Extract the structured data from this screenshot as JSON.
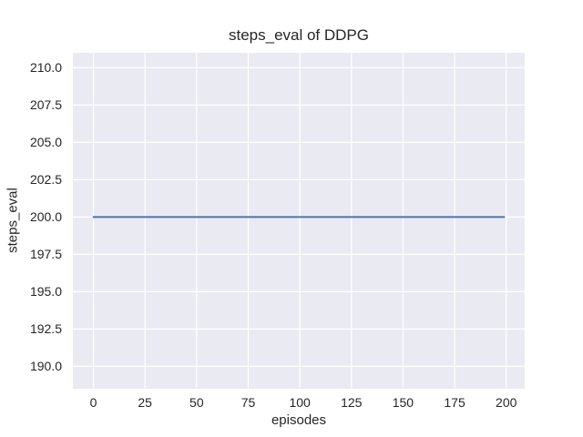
{
  "chart_data": {
    "type": "line",
    "title": "steps_eval of DDPG",
    "xlabel": "episodes",
    "ylabel": "steps_eval",
    "xlim": [
      -9.95,
      208.95
    ],
    "ylim": [
      188.5,
      211.0
    ],
    "x_tick_values": [
      0,
      25,
      50,
      75,
      100,
      125,
      150,
      175,
      200
    ],
    "x_tick_labels": [
      "0",
      "25",
      "50",
      "75",
      "100",
      "125",
      "150",
      "175",
      "200"
    ],
    "y_tick_values": [
      210.0,
      207.5,
      205.0,
      202.5,
      200.0,
      197.5,
      195.0,
      192.5,
      190.0
    ],
    "y_tick_labels": [
      "210.0",
      "207.5",
      "205.0",
      "202.5",
      "200.0",
      "197.5",
      "195.0",
      "192.5",
      "190.0"
    ],
    "grid": true,
    "legend_position": "none",
    "style": {
      "figure_facecolor": "#ffffff",
      "axes_facecolor": "#eaeaf2",
      "grid_color": "#ffffff",
      "text_color": "#262626"
    },
    "series": [
      {
        "name": "steps_eval",
        "color": "#4c72b0",
        "linewidth": 2,
        "x_start": 0,
        "x_end": 199,
        "y_constant": 200,
        "description": "constant value 200 for every evaluated episode 0-199"
      }
    ]
  }
}
